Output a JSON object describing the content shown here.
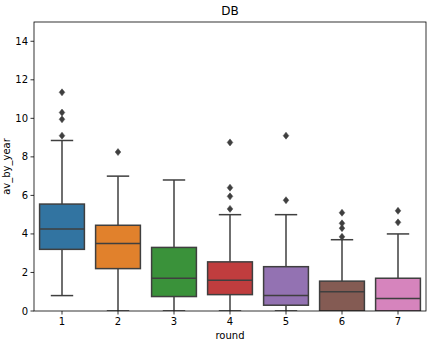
{
  "chart_data": {
    "type": "box",
    "title": "DB",
    "x_label": "round",
    "y_label": "av_by_year",
    "categories": [
      "1",
      "2",
      "3",
      "4",
      "5",
      "6",
      "7"
    ],
    "boxes": [
      {
        "whislo": 0.8,
        "q1": 3.2,
        "med": 4.25,
        "q3": 5.55,
        "whishi": 8.85,
        "fliers": [
          9.1,
          9.95,
          10.3,
          11.35
        ]
      },
      {
        "whislo": 0,
        "q1": 2.2,
        "med": 3.5,
        "q3": 4.45,
        "whishi": 7.0,
        "fliers": [
          8.25
        ]
      },
      {
        "whislo": 0,
        "q1": 0.75,
        "med": 1.7,
        "q3": 3.3,
        "whishi": 6.8,
        "fliers": []
      },
      {
        "whislo": 0,
        "q1": 0.85,
        "med": 1.6,
        "q3": 2.55,
        "whishi": 5.0,
        "fliers": [
          5.3,
          5.95,
          6.4,
          8.75
        ]
      },
      {
        "whislo": 0,
        "q1": 0.3,
        "med": 0.8,
        "q3": 2.3,
        "whishi": 5.0,
        "fliers": [
          5.75,
          9.1
        ]
      },
      {
        "whislo": 0,
        "q1": 0,
        "med": 1.0,
        "q3": 1.55,
        "whishi": 3.7,
        "fliers": [
          3.85,
          4.3,
          4.55,
          5.1
        ]
      },
      {
        "whislo": 0,
        "q1": 0,
        "med": 0.65,
        "q3": 1.7,
        "whishi": 4.0,
        "fliers": [
          4.6,
          5.2
        ]
      }
    ],
    "colors": [
      "#3274a1",
      "#e1812c",
      "#3a923a",
      "#c03d3e",
      "#9372b2",
      "#845b53",
      "#d684bd"
    ],
    "ylim": [
      0,
      15
    ],
    "yticks": [
      0,
      2,
      4,
      6,
      8,
      10,
      12,
      14
    ],
    "grid": false
  }
}
